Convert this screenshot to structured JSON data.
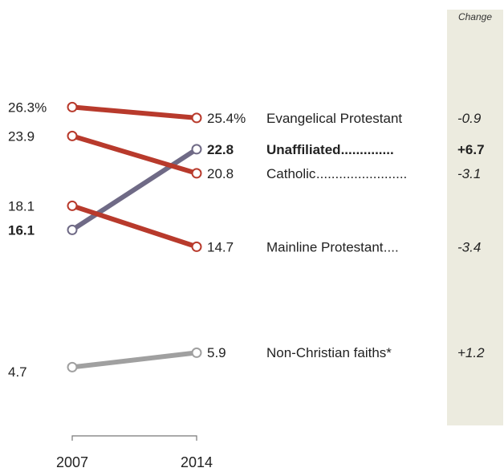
{
  "chart_data": {
    "type": "slope",
    "x": [
      "2007",
      "2014"
    ],
    "change_header": "Change",
    "series": [
      {
        "name": "Evangelical Protestant",
        "values": [
          26.3,
          25.4
        ],
        "label_start": "26.3%",
        "label_end": "25.4%",
        "leader": "",
        "change": "-0.9",
        "color": "#b83a2c",
        "bold": false
      },
      {
        "name": "Unaffiliated",
        "values": [
          16.1,
          22.8
        ],
        "label_start": "16.1",
        "label_end": "22.8",
        "leader": " ..............",
        "change": "+6.7",
        "color": "#6f6a86",
        "bold": true
      },
      {
        "name": "Catholic",
        "values": [
          23.9,
          20.8
        ],
        "label_start": "23.9",
        "label_end": "20.8",
        "leader": " ........................",
        "change": "-3.1",
        "color": "#b83a2c",
        "bold": false
      },
      {
        "name": "Mainline Protestant",
        "values": [
          18.1,
          14.7
        ],
        "label_start": "18.1",
        "label_end": "14.7",
        "leader": "....",
        "change": "-3.4",
        "color": "#b83a2c",
        "bold": false
      },
      {
        "name": "Non-Christian faiths*",
        "values": [
          4.7,
          5.9
        ],
        "label_start": "4.7",
        "label_end": "5.9",
        "leader": "",
        "change": "+1.2",
        "color": "#a0a0a0",
        "bold": false
      }
    ],
    "colors": {
      "decline": "#b83a2c",
      "unaffiliated": "#6f6a86",
      "other": "#a0a0a0",
      "change_panel": "#ecebdf"
    }
  }
}
